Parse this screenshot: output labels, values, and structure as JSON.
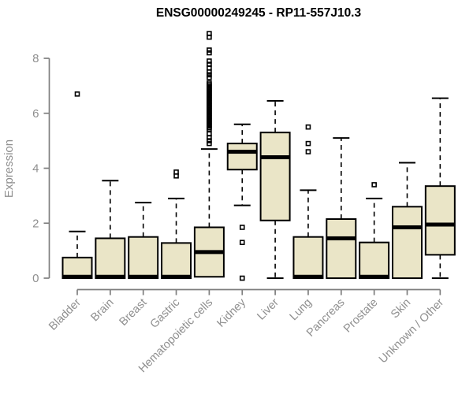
{
  "page": {
    "background": "#ffffff"
  },
  "chart_data": {
    "type": "boxplot",
    "title": "ENSG00000249245 - RP11-557J10.3",
    "ylabel": "Expression",
    "xlabel": "",
    "ylim": [
      0,
      9
    ],
    "yticks": [
      0,
      2,
      4,
      6,
      8
    ],
    "grid": false,
    "legend": "none",
    "axis_color": "#7e7e7e",
    "label_color": "#8f8f8f",
    "box_fill": "#EAE5C7",
    "box_stroke": "#000000",
    "categories": [
      "Bladder",
      "Brain",
      "Breast",
      "Gastric",
      "Hematopoietic cells",
      "Kidney",
      "Liver",
      "Lung",
      "Pancreas",
      "Prostate",
      "Skin",
      "Unknown / Other"
    ],
    "boxes": [
      {
        "category": "Bladder",
        "whisker_low": 0,
        "q1": 0,
        "median": 0.05,
        "q3": 0.75,
        "whisker_high": 1.7,
        "outliers": [
          6.7
        ]
      },
      {
        "category": "Brain",
        "whisker_low": 0,
        "q1": 0,
        "median": 0.05,
        "q3": 1.45,
        "whisker_high": 3.55,
        "outliers": []
      },
      {
        "category": "Breast",
        "whisker_low": 0,
        "q1": 0,
        "median": 0.05,
        "q3": 1.5,
        "whisker_high": 2.75,
        "outliers": []
      },
      {
        "category": "Gastric",
        "whisker_low": 0,
        "q1": 0,
        "median": 0.05,
        "q3": 1.28,
        "whisker_high": 2.9,
        "outliers": [
          3.72,
          3.86
        ]
      },
      {
        "category": "Hematopoietic cells",
        "whisker_low": 0.05,
        "q1": 0.05,
        "median": 0.95,
        "q3": 1.85,
        "whisker_high": 4.7,
        "outliers": [
          8.9,
          8.77,
          8.3,
          8.2,
          7.9,
          7.78,
          7.65,
          7.5,
          7.4,
          7.3,
          7.1,
          7.04,
          6.98,
          6.92,
          6.86,
          6.8,
          6.74,
          6.68,
          6.62,
          6.56,
          6.5,
          6.44,
          6.38,
          6.32,
          6.26,
          6.2,
          6.14,
          6.08,
          6.02,
          5.96,
          5.9,
          5.84,
          5.78,
          5.72,
          5.66,
          5.6,
          5.54,
          5.48,
          5.42,
          5.25,
          5.12,
          5.0,
          4.9
        ]
      },
      {
        "category": "Kidney",
        "whisker_low": 2.65,
        "q1": 3.95,
        "median": 4.6,
        "q3": 4.9,
        "whisker_high": 5.6,
        "outliers": [
          1.85,
          1.3,
          0
        ]
      },
      {
        "category": "Liver",
        "whisker_low": 0,
        "q1": 2.1,
        "median": 4.4,
        "q3": 5.3,
        "whisker_high": 6.45,
        "outliers": []
      },
      {
        "category": "Lung",
        "whisker_low": 0,
        "q1": 0,
        "median": 0.05,
        "q3": 1.5,
        "whisker_high": 3.2,
        "outliers": [
          4.6,
          4.9,
          5.5
        ]
      },
      {
        "category": "Pancreas",
        "whisker_low": 0,
        "q1": 0,
        "median": 1.45,
        "q3": 2.15,
        "whisker_high": 5.1,
        "outliers": []
      },
      {
        "category": "Prostate",
        "whisker_low": 0,
        "q1": 0,
        "median": 0.05,
        "q3": 1.3,
        "whisker_high": 2.9,
        "outliers": [
          3.4
        ]
      },
      {
        "category": "Skin",
        "whisker_low": 0,
        "q1": 0,
        "median": 1.85,
        "q3": 2.6,
        "whisker_high": 4.2,
        "outliers": []
      },
      {
        "category": "Unknown / Other",
        "whisker_low": 0,
        "q1": 0.85,
        "median": 1.95,
        "q3": 3.35,
        "whisker_high": 6.55,
        "outliers": []
      }
    ]
  }
}
